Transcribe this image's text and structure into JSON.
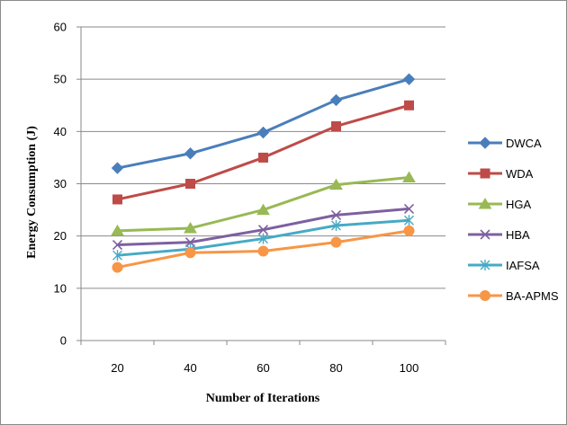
{
  "chart_data": {
    "type": "line",
    "title": "",
    "xlabel": "Number of Iterations",
    "ylabel": "Energy Consumption (J)",
    "categories": [
      "20",
      "40",
      "60",
      "80",
      "100"
    ],
    "ylim": [
      0,
      60
    ],
    "yticks": [
      0,
      10,
      20,
      30,
      40,
      50,
      60
    ],
    "grid": "horizontal",
    "legend_position": "right",
    "series": [
      {
        "name": "DWCA",
        "values": [
          33,
          35.8,
          39.8,
          46,
          50
        ],
        "color": "#4a7ebb",
        "marker": "diamond"
      },
      {
        "name": "WDA",
        "values": [
          27,
          30,
          35,
          41,
          45
        ],
        "color": "#be4b48",
        "marker": "square"
      },
      {
        "name": "HGA",
        "values": [
          21,
          21.5,
          25,
          29.8,
          31.2
        ],
        "color": "#98b954",
        "marker": "triangle"
      },
      {
        "name": "HBA",
        "values": [
          18.3,
          18.8,
          21.2,
          24,
          25.2
        ],
        "color": "#7d60a0",
        "marker": "x"
      },
      {
        "name": "IAFSA",
        "values": [
          16.3,
          17.5,
          19.5,
          22,
          23
        ],
        "color": "#46aac5",
        "marker": "asterisk"
      },
      {
        "name": "BA-APMS",
        "values": [
          14,
          16.8,
          17.1,
          18.8,
          21
        ],
        "color": "#f79646",
        "marker": "circle"
      }
    ]
  }
}
